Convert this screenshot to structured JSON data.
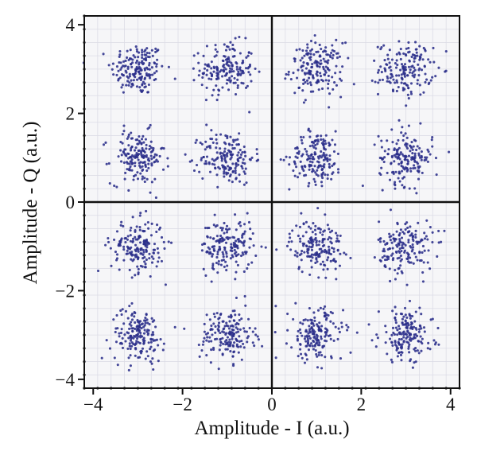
{
  "chart_data": {
    "type": "scatter",
    "title": "",
    "xlabel": "Amplitude - I (a.u.)",
    "ylabel": "Amplitude - Q (a.u.)",
    "xlim": [
      -4.2,
      4.2
    ],
    "ylim": [
      -4.2,
      4.2
    ],
    "x_ticks": [
      -4,
      -2,
      0,
      2,
      4
    ],
    "y_ticks": [
      -4,
      -2,
      0,
      2,
      4
    ],
    "x_tick_labels": [
      "−4",
      "−2",
      "0",
      "2",
      "4"
    ],
    "y_tick_labels": [
      "−4",
      "−2",
      "0",
      "2",
      "4"
    ],
    "grid": true,
    "point_color": "#2a2e8a",
    "series": [
      {
        "constellation_points": [
          {
            "x": -3,
            "y": 3
          },
          {
            "x": -1,
            "y": 3
          },
          {
            "x": 1,
            "y": 3
          },
          {
            "x": 3,
            "y": 3
          },
          {
            "x": -3,
            "y": 1
          },
          {
            "x": -1,
            "y": 1
          },
          {
            "x": 1,
            "y": 1
          },
          {
            "x": 3,
            "y": 1
          },
          {
            "x": -3,
            "y": -1
          },
          {
            "x": -1,
            "y": -1
          },
          {
            "x": 1,
            "y": -1
          },
          {
            "x": 3,
            "y": -1
          },
          {
            "x": -3,
            "y": -3
          },
          {
            "x": -1,
            "y": -3
          },
          {
            "x": 1,
            "y": -3
          },
          {
            "x": 3,
            "y": -3
          }
        ],
        "noise_std": 0.3,
        "points_per_symbol": 170
      }
    ]
  }
}
